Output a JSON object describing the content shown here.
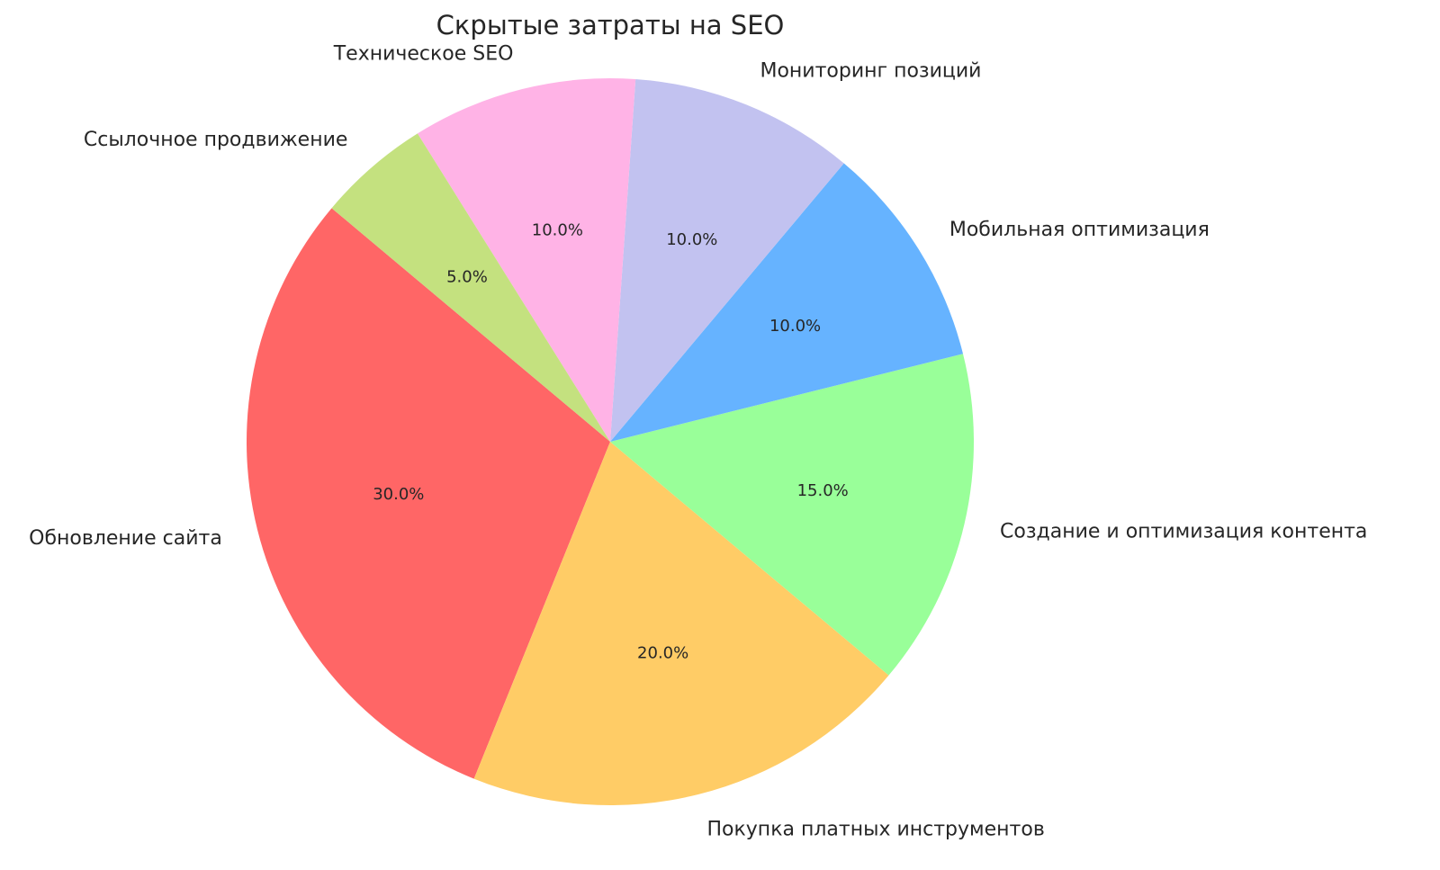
{
  "chart_data": {
    "type": "pie",
    "title": "Скрытые затраты на SEO",
    "start_angle_deg": 140,
    "direction": "counterclockwise",
    "slices": [
      {
        "label": "Обновление сайта",
        "value": 30,
        "pct_label": "30.0%",
        "color": "#ff6666"
      },
      {
        "label": "Покупка платных инструментов",
        "value": 20,
        "pct_label": "20.0%",
        "color": "#ffcc66"
      },
      {
        "label": "Создание и оптимизация контента",
        "value": 15,
        "pct_label": "15.0%",
        "color": "#99ff99"
      },
      {
        "label": "Мобильная оптимизация",
        "value": 10,
        "pct_label": "10.0%",
        "color": "#66b3ff"
      },
      {
        "label": "Мониторинг позиций",
        "value": 10,
        "pct_label": "10.0%",
        "color": "#c2c2f0"
      },
      {
        "label": "Техническое SEO",
        "value": 10,
        "pct_label": "10.0%",
        "color": "#ffb3e6"
      },
      {
        "label": "Ссылочное продвижение",
        "value": 5,
        "pct_label": "5.0%",
        "color": "#c4e17f"
      }
    ]
  }
}
